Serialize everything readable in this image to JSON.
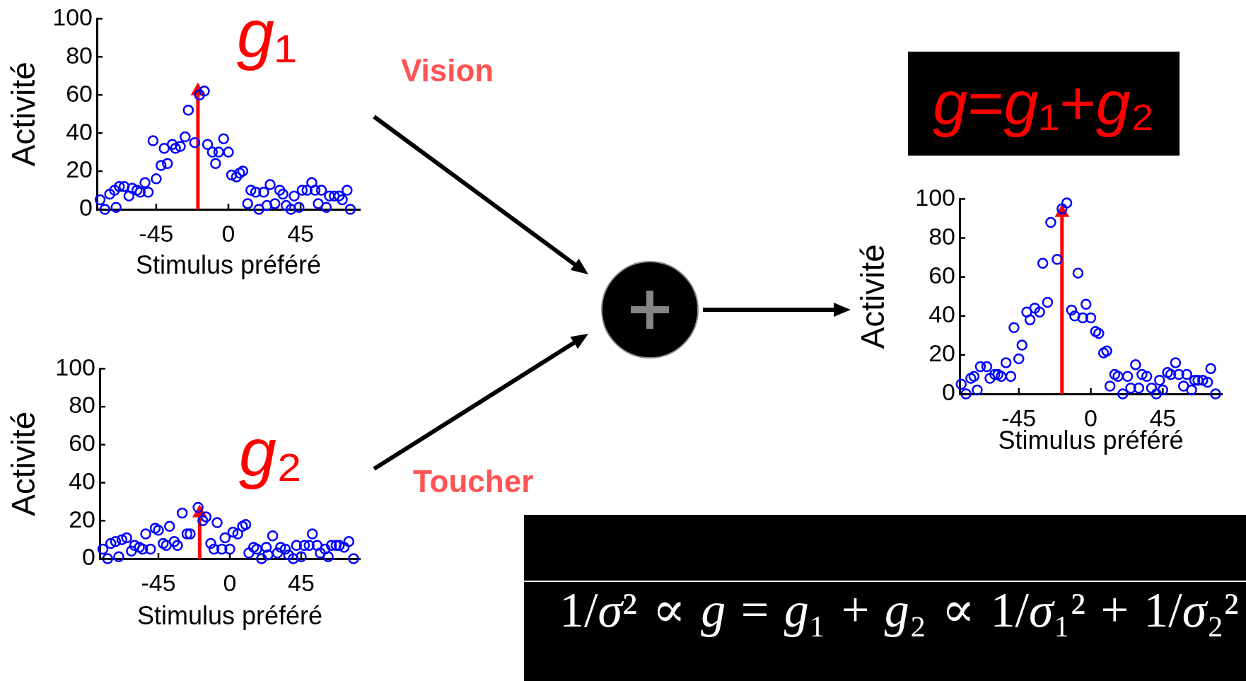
{
  "chart_data": [
    {
      "type": "scatter",
      "xlabel": "Stimulus préféré",
      "ylabel": "Activité",
      "annotations": [
        "g₁"
      ],
      "xlim": [
        -82,
        82
      ],
      "xticks": [
        -45,
        0,
        45
      ],
      "ylim": [
        0,
        100
      ],
      "yticks": [
        0,
        20,
        40,
        60,
        80,
        100
      ],
      "marker": "circle",
      "series": [
        {
          "color": "#0000ff",
          "x": [
            -80,
            -77,
            -74,
            -71,
            -70,
            -68,
            -65,
            -62,
            -60,
            -57,
            -55,
            -52,
            -50,
            -47,
            -45,
            -42,
            -40,
            -38,
            -35,
            -33,
            -30,
            -27,
            -25,
            -21,
            -18,
            -15,
            -13,
            -10,
            -8,
            -6,
            -3,
            0,
            2,
            5,
            7,
            9,
            12,
            14,
            17,
            19,
            22,
            24,
            26,
            29,
            32,
            34,
            36,
            39,
            41,
            44,
            46,
            49,
            52,
            54,
            56,
            58,
            61,
            63,
            66,
            69,
            71,
            74,
            76
          ],
          "values": [
            5,
            0,
            8,
            10,
            1,
            12,
            12,
            7,
            11,
            10,
            9,
            14,
            9,
            36,
            16,
            23,
            32,
            24,
            34,
            32,
            33,
            38,
            52,
            35,
            60,
            62,
            34,
            30,
            24,
            30,
            37,
            30,
            18,
            17,
            19,
            20,
            3,
            10,
            9,
            0,
            9,
            2,
            13,
            3,
            10,
            8,
            2,
            0,
            7,
            1,
            10,
            10,
            14,
            10,
            3,
            10,
            1,
            7,
            7,
            7,
            5,
            10,
            0
          ]
        },
        {
          "type": "lollipop",
          "color": "#ff0000",
          "marker": "triangle",
          "x": [
            -19
          ],
          "values": [
            62
          ]
        }
      ]
    },
    {
      "type": "scatter",
      "xlabel": "Stimulus préféré",
      "ylabel": "Activité",
      "annotations": [
        "g₂"
      ],
      "xlim": [
        -82,
        82
      ],
      "xticks": [
        -45,
        0,
        45
      ],
      "ylim": [
        0,
        100
      ],
      "yticks": [
        0,
        20,
        40,
        60,
        80,
        100
      ],
      "marker": "circle",
      "series": [
        {
          "color": "#0000ff",
          "x": [
            -80,
            -77,
            -75,
            -72,
            -70,
            -68,
            -65,
            -62,
            -60,
            -57,
            -55,
            -53,
            -50,
            -47,
            -45,
            -42,
            -40,
            -38,
            -35,
            -33,
            -30,
            -27,
            -25,
            -20,
            -17,
            -15,
            -12,
            -10,
            -8,
            -5,
            -3,
            0,
            2,
            5,
            8,
            10,
            12,
            15,
            17,
            20,
            23,
            24,
            27,
            30,
            32,
            35,
            37,
            40,
            42,
            45,
            47,
            50,
            52,
            55,
            57,
            60,
            62,
            64,
            67,
            69,
            72,
            75,
            78
          ],
          "values": [
            5,
            0,
            8,
            9,
            1,
            10,
            11,
            4,
            7,
            6,
            5,
            13,
            5,
            16,
            15,
            8,
            7,
            17,
            9,
            7,
            24,
            13,
            13,
            27,
            20,
            22,
            8,
            5,
            19,
            5,
            11,
            5,
            14,
            13,
            17,
            18,
            3,
            6,
            5,
            0,
            6,
            2,
            12,
            3,
            6,
            5,
            2,
            0,
            7,
            1,
            7,
            7,
            13,
            7,
            3,
            5,
            1,
            7,
            7,
            7,
            6,
            9,
            0
          ]
        },
        {
          "type": "lollipop",
          "color": "#ff0000",
          "marker": "triangle",
          "x": [
            -19
          ],
          "values": [
            24
          ]
        }
      ]
    },
    {
      "type": "scatter",
      "title": "g=g₁+g₂",
      "xlabel": "Stimulus préféré",
      "ylabel": "Activité",
      "xlim": [
        -82,
        82
      ],
      "xticks": [
        -45,
        0,
        45
      ],
      "ylim": [
        0,
        100
      ],
      "yticks": [
        0,
        20,
        40,
        60,
        80,
        100
      ],
      "marker": "circle",
      "series": [
        {
          "color": "#0000ff",
          "x": [
            -81,
            -78,
            -75,
            -73,
            -71,
            -69,
            -65,
            -63,
            -60,
            -58,
            -56,
            -53,
            -50,
            -48,
            -45,
            -43,
            -40,
            -38,
            -35,
            -32,
            -30,
            -27,
            -25,
            -21,
            -18,
            -15,
            -12,
            -10,
            -8,
            -5,
            -3,
            0,
            3,
            5,
            8,
            10,
            12,
            15,
            17,
            20,
            23,
            25,
            28,
            30,
            32,
            35,
            38,
            41,
            43,
            45,
            48,
            50,
            53,
            55,
            58,
            60,
            63,
            65,
            67,
            70,
            73,
            75,
            78
          ],
          "values": [
            5,
            0,
            8,
            9,
            2,
            14,
            14,
            8,
            10,
            10,
            9,
            16,
            9,
            34,
            18,
            25,
            42,
            38,
            44,
            42,
            67,
            47,
            88,
            69,
            95,
            98,
            43,
            40,
            62,
            39,
            46,
            39,
            32,
            31,
            21,
            22,
            4,
            10,
            9,
            0,
            9,
            3,
            15,
            3,
            10,
            9,
            3,
            0,
            7,
            2,
            11,
            10,
            16,
            10,
            4,
            10,
            2,
            7,
            7,
            7,
            6,
            13,
            0
          ]
        },
        {
          "type": "lollipop",
          "color": "#ff0000",
          "marker": "triangle",
          "x": [
            -18
          ],
          "values": [
            93
          ]
        }
      ]
    },
    {
      "type": "other",
      "annotations": [
        "Vision",
        "Toucher",
        "1/σ² ∝ g = g₁ + g₂ ∝ 1/σ₁² + 1/σ₂²"
      ]
    }
  ]
}
